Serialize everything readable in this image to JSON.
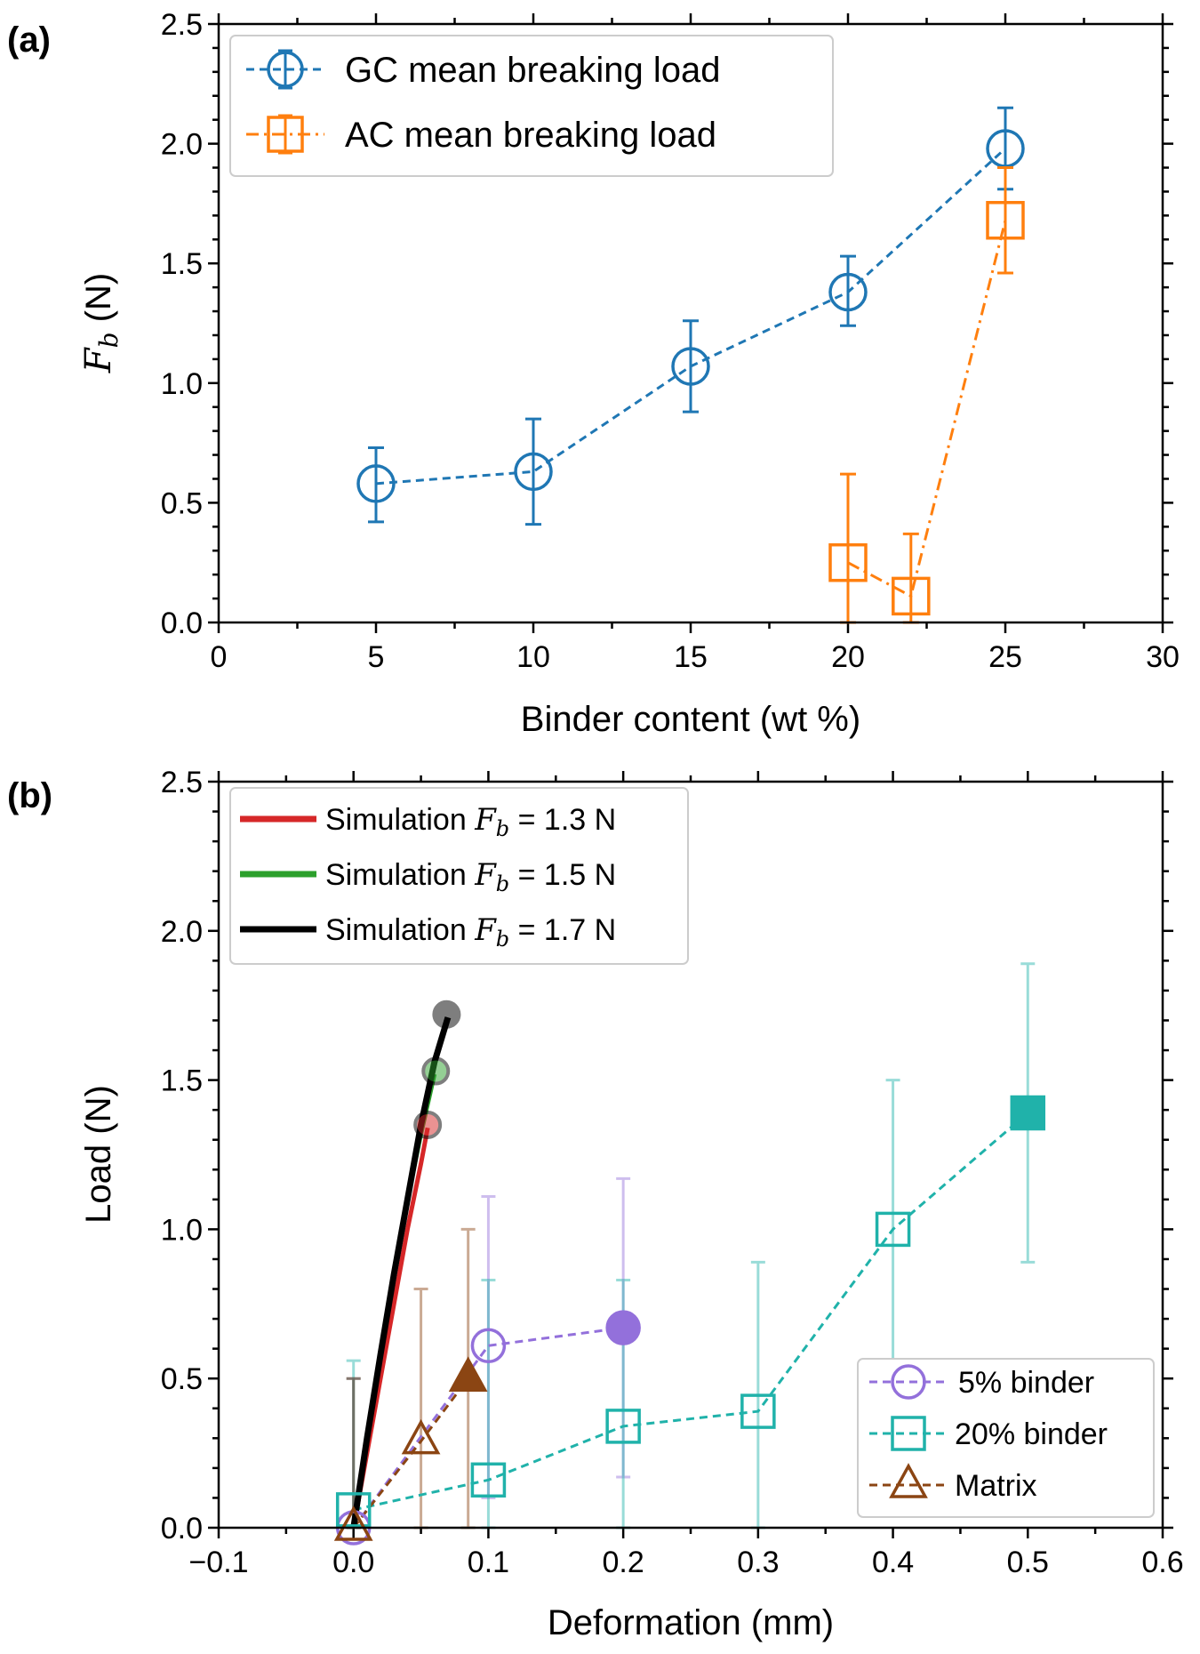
{
  "chart_data": [
    {
      "panel_label": "(a)",
      "type": "line",
      "xlabel": "Binder content (wt %)",
      "ylabel_symbol": "F",
      "ylabel_subscript": "b",
      "ylabel_unit": " (N)",
      "xlim": [
        0,
        30
      ],
      "ylim": [
        0,
        2.5
      ],
      "xticks": [
        0,
        5,
        10,
        15,
        20,
        25,
        30
      ],
      "yticks": [
        0.0,
        0.5,
        1.0,
        1.5,
        2.0,
        2.5
      ],
      "xtick_labels": [
        "0",
        "5",
        "10",
        "15",
        "20",
        "25",
        "30"
      ],
      "ytick_labels": [
        "0.0",
        "0.5",
        "1.0",
        "1.5",
        "2.0",
        "2.5"
      ],
      "legend_position": "top-left",
      "series": [
        {
          "name": "GC mean breaking load",
          "color": "#1f77b4",
          "marker": "circle",
          "linestyle": "dashed",
          "x": [
            5,
            10,
            15,
            20,
            25
          ],
          "y": [
            0.58,
            0.63,
            1.07,
            1.38,
            1.98
          ],
          "err_low": [
            0.42,
            0.41,
            0.88,
            1.24,
            1.81
          ],
          "err_high": [
            0.73,
            0.85,
            1.26,
            1.53,
            2.15
          ]
        },
        {
          "name": "AC mean breaking load",
          "color": "#ff7f0e",
          "marker": "square",
          "linestyle": "dashdot",
          "x": [
            20,
            22,
            25
          ],
          "y": [
            0.25,
            0.11,
            1.68
          ],
          "err_low": [
            0.0,
            0.0,
            1.46
          ],
          "err_high": [
            0.62,
            0.37,
            1.9
          ]
        }
      ]
    },
    {
      "panel_label": "(b)",
      "type": "line",
      "xlabel": "Deformation (mm)",
      "ylabel": "Load (N)",
      "xlim": [
        -0.1,
        0.6
      ],
      "ylim": [
        0,
        2.5
      ],
      "xticks": [
        -0.1,
        0.0,
        0.1,
        0.2,
        0.3,
        0.4,
        0.5,
        0.6
      ],
      "yticks": [
        0.0,
        0.5,
        1.0,
        1.5,
        2.0,
        2.5
      ],
      "xtick_labels": [
        "−0.1",
        "0.0",
        "0.1",
        "0.2",
        "0.3",
        "0.4",
        "0.5",
        "0.6"
      ],
      "ytick_labels": [
        "0.0",
        "0.5",
        "1.0",
        "1.5",
        "2.0",
        "2.5"
      ],
      "legend_top_position": "top-left",
      "legend_bottom_position": "bottom-right",
      "simulations": [
        {
          "name_prefix": "Simulation ",
          "name_symbol": "F",
          "name_subscript": "b",
          "name_suffix": " = 1.3 N",
          "color": "#d62728",
          "x": [
            0.0,
            0.01,
            0.02,
            0.03,
            0.04,
            0.05,
            0.055
          ],
          "y": [
            0.0,
            0.25,
            0.5,
            0.75,
            1.0,
            1.22,
            1.34
          ],
          "end_point": [
            0.055,
            1.35
          ]
        },
        {
          "name_prefix": "Simulation ",
          "name_symbol": "F",
          "name_subscript": "b",
          "name_suffix": " = 1.5 N",
          "color": "#2ca02c",
          "x": [
            0.0,
            0.01,
            0.02,
            0.03,
            0.04,
            0.05,
            0.06
          ],
          "y": [
            0.0,
            0.3,
            0.58,
            0.85,
            1.1,
            1.32,
            1.52
          ],
          "end_point": [
            0.061,
            1.53
          ]
        },
        {
          "name_prefix": "Simulation ",
          "name_symbol": "F",
          "name_subscript": "b",
          "name_suffix": " = 1.7 N",
          "color": "#000000",
          "x": [
            0.0,
            0.01,
            0.02,
            0.03,
            0.04,
            0.05,
            0.06,
            0.07
          ],
          "y": [
            0.0,
            0.3,
            0.58,
            0.85,
            1.1,
            1.35,
            1.56,
            1.71
          ],
          "end_point": [
            0.069,
            1.72
          ]
        }
      ],
      "experiments": [
        {
          "name": "5% binder",
          "color": "#9370db",
          "marker": "circle",
          "x": [
            0.0,
            0.1,
            0.2
          ],
          "y": [
            0.0,
            0.61,
            0.67
          ],
          "filled": [
            false,
            false,
            true
          ],
          "err_low": [
            null,
            0.1,
            0.17
          ],
          "err_high": [
            null,
            1.11,
            1.17
          ]
        },
        {
          "name": "20% binder",
          "color": "#20b2aa",
          "marker": "square",
          "x": [
            0.0,
            0.1,
            0.2,
            0.3,
            0.4,
            0.5
          ],
          "y": [
            0.06,
            0.16,
            0.34,
            0.39,
            1.0,
            1.39
          ],
          "filled": [
            false,
            false,
            false,
            false,
            false,
            true
          ],
          "err_low": [
            0.0,
            0.0,
            0.0,
            0.0,
            0.5,
            0.89
          ],
          "err_high": [
            0.56,
            0.83,
            0.83,
            0.89,
            1.5,
            1.89
          ]
        },
        {
          "name": "Matrix",
          "color": "#8b4513",
          "marker": "triangle",
          "x": [
            0.0,
            0.05,
            0.085
          ],
          "y": [
            0.0,
            0.29,
            0.5
          ],
          "filled": [
            false,
            false,
            true
          ],
          "err_low": [
            0.0,
            0.0,
            0.0
          ],
          "err_high": [
            0.5,
            0.8,
            1.0
          ]
        }
      ]
    }
  ]
}
